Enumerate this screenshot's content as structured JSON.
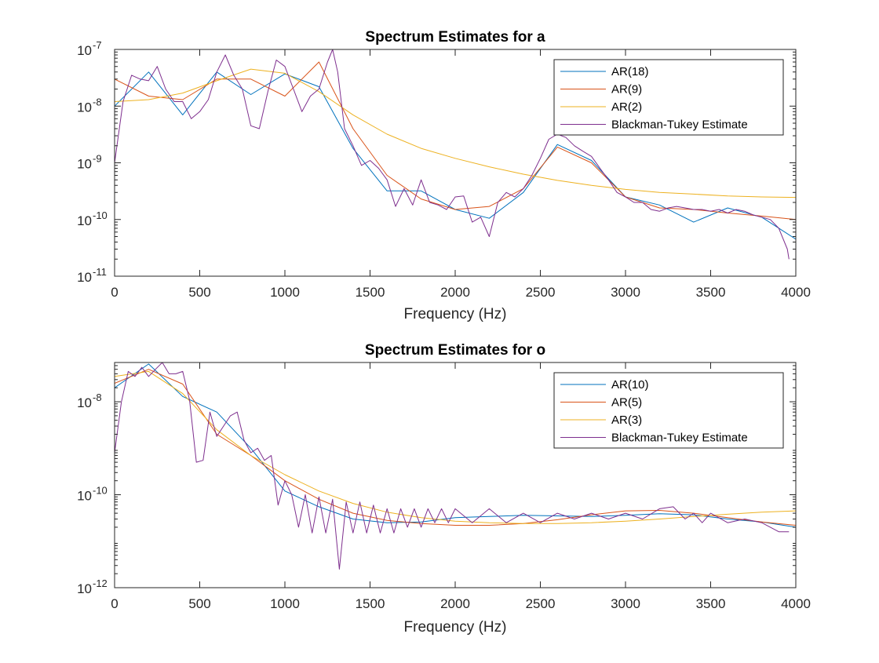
{
  "chart_data": [
    {
      "type": "line",
      "title": "Spectrum Estimates for a",
      "xlabel": "Frequency (Hz)",
      "ylabel": "",
      "xlim": [
        0,
        4000
      ],
      "ylim": [
        1e-11,
        1e-07
      ],
      "yscale": "log",
      "grid": false,
      "legend_position": "top-right",
      "x_ticks": [
        "0",
        "500",
        "1000",
        "1500",
        "2000",
        "2500",
        "3000",
        "3500",
        "4000"
      ],
      "y_ticks": [
        {
          "base": "10",
          "exp": "-11"
        },
        {
          "base": "10",
          "exp": "-10"
        },
        {
          "base": "10",
          "exp": "-9"
        },
        {
          "base": "10",
          "exp": "-8"
        },
        {
          "base": "10",
          "exp": "-7"
        }
      ],
      "series": [
        {
          "name": "AR(18)",
          "color": "#0072BD",
          "x": [
            0,
            200,
            400,
            600,
            800,
            1000,
            1200,
            1400,
            1600,
            1800,
            2000,
            2200,
            2400,
            2600,
            2800,
            3000,
            3200,
            3400,
            3600,
            3800,
            4000
          ],
          "y": [
            1e-08,
            4e-08,
            7e-09,
            4e-08,
            1.6e-08,
            3.7e-08,
            2.2e-08,
            1.8e-09,
            3.2e-10,
            3.2e-10,
            1.5e-10,
            1.05e-10,
            3e-10,
            2.1e-09,
            1.1e-09,
            2.5e-10,
            1.8e-10,
            9e-11,
            1.6e-10,
            1.1e-10,
            4.5e-11
          ]
        },
        {
          "name": "AR(9)",
          "color": "#D95319",
          "x": [
            0,
            200,
            400,
            600,
            800,
            1000,
            1200,
            1400,
            1600,
            1800,
            2000,
            2200,
            2400,
            2600,
            2800,
            3000,
            3200,
            3400,
            3600,
            3800,
            4000
          ],
          "y": [
            3e-08,
            1.5e-08,
            1.3e-08,
            3e-08,
            3e-08,
            1.5e-08,
            6e-08,
            4e-09,
            6e-10,
            2.3e-10,
            1.5e-10,
            1.7e-10,
            3.5e-10,
            1.9e-09,
            1e-09,
            2.5e-10,
            1.6e-10,
            1.5e-10,
            1.3e-10,
            1.15e-10,
            1e-10
          ]
        },
        {
          "name": "AR(2)",
          "color": "#EDB120",
          "x": [
            0,
            200,
            400,
            600,
            800,
            1000,
            1200,
            1400,
            1600,
            1800,
            2000,
            2200,
            2400,
            2600,
            2800,
            3000,
            3200,
            3400,
            3600,
            3800,
            4000
          ],
          "y": [
            1.2e-08,
            1.3e-08,
            1.7e-08,
            2.8e-08,
            4.5e-08,
            3.8e-08,
            1.8e-08,
            7e-09,
            3.2e-09,
            1.8e-09,
            1.2e-09,
            8.5e-10,
            6.3e-10,
            4.9e-10,
            4e-10,
            3.4e-10,
            3e-10,
            2.8e-10,
            2.6e-10,
            2.5e-10,
            2.45e-10
          ]
        },
        {
          "name": "Blackman-Tukey Estimate",
          "color": "#7E2F8E",
          "x": [
            0,
            50,
            100,
            150,
            200,
            250,
            300,
            350,
            400,
            450,
            500,
            550,
            600,
            650,
            700,
            750,
            800,
            850,
            900,
            950,
            1000,
            1050,
            1100,
            1150,
            1200,
            1250,
            1280,
            1310,
            1350,
            1400,
            1450,
            1500,
            1550,
            1600,
            1650,
            1700,
            1750,
            1800,
            1850,
            1900,
            1950,
            2000,
            2050,
            2100,
            2150,
            2200,
            2250,
            2300,
            2350,
            2400,
            2450,
            2500,
            2550,
            2600,
            2650,
            2700,
            2750,
            2800,
            2850,
            2900,
            2950,
            3000,
            3050,
            3100,
            3150,
            3200,
            3250,
            3300,
            3350,
            3400,
            3450,
            3500,
            3550,
            3600,
            3650,
            3700,
            3750,
            3800,
            3850,
            3900,
            3950,
            3960
          ],
          "y": [
            1e-09,
            1.2e-08,
            3.5e-08,
            3e-08,
            2.8e-08,
            5e-08,
            2e-08,
            1.2e-08,
            1.2e-08,
            6e-09,
            8e-09,
            1.3e-08,
            4e-08,
            8e-08,
            3.5e-08,
            2e-08,
            4.5e-09,
            4e-09,
            1.8e-08,
            6.5e-08,
            5e-08,
            2e-08,
            8e-09,
            1.5e-08,
            2e-08,
            6e-08,
            1e-07,
            4e-08,
            4e-09,
            2e-09,
            9e-10,
            1.1e-09,
            8e-10,
            5e-10,
            1.7e-10,
            3.5e-10,
            1.8e-10,
            5e-10,
            2e-10,
            1.8e-10,
            1.5e-10,
            2.5e-10,
            2.6e-10,
            9e-11,
            1.1e-10,
            5e-11,
            2e-10,
            3e-10,
            2.5e-10,
            3.5e-10,
            6e-10,
            1.2e-09,
            2.6e-09,
            3.2e-09,
            2.8e-09,
            2e-09,
            1.6e-09,
            1.3e-09,
            8e-10,
            5e-10,
            3e-10,
            2.5e-10,
            2e-10,
            2e-10,
            1.5e-10,
            1.4e-10,
            1.6e-10,
            1.7e-10,
            1.6e-10,
            1.5e-10,
            1.5e-10,
            1.4e-10,
            1.5e-10,
            1.3e-10,
            1.5e-10,
            1.4e-10,
            1.2e-10,
            1.1e-10,
            1e-10,
            7e-11,
            3e-11,
            2e-11
          ]
        }
      ]
    },
    {
      "type": "line",
      "title": "Spectrum Estimates for o",
      "xlabel": "Frequency (Hz)",
      "ylabel": "",
      "xlim": [
        0,
        4000
      ],
      "ylim": [
        1e-12,
        7e-08
      ],
      "yscale": "log",
      "grid": false,
      "legend_position": "top-right",
      "x_ticks": [
        "0",
        "500",
        "1000",
        "1500",
        "2000",
        "2500",
        "3000",
        "3500",
        "4000"
      ],
      "y_ticks": [
        {
          "base": "10",
          "exp": "-12"
        },
        {
          "base": "10",
          "exp": "-10"
        },
        {
          "base": "10",
          "exp": "-8"
        }
      ],
      "series": [
        {
          "name": "AR(10)",
          "color": "#0072BD",
          "x": [
            0,
            200,
            400,
            600,
            800,
            1000,
            1200,
            1400,
            1600,
            1800,
            2000,
            2200,
            2400,
            2600,
            2800,
            3000,
            3200,
            3400,
            3600,
            3800,
            4000
          ],
          "y": [
            2e-08,
            6.5e-08,
            1.3e-08,
            6e-09,
            1e-09,
            1.2e-10,
            5.5e-11,
            3e-11,
            2.5e-11,
            2.6e-11,
            3.2e-11,
            3.4e-11,
            3.6e-11,
            3.5e-11,
            3.4e-11,
            3.6e-11,
            3.9e-11,
            3.7e-11,
            3e-11,
            2.6e-11,
            2e-11
          ]
        },
        {
          "name": "AR(5)",
          "color": "#D95319",
          "x": [
            0,
            200,
            400,
            600,
            800,
            1000,
            1200,
            1400,
            1600,
            1800,
            2000,
            2200,
            2400,
            2600,
            2800,
            3000,
            3200,
            3400,
            3600,
            3800,
            4000
          ],
          "y": [
            2.5e-08,
            5e-08,
            2.4e-08,
            2e-09,
            7e-10,
            2e-10,
            8e-11,
            4e-11,
            2.8e-11,
            2.4e-11,
            2.2e-11,
            2.2e-11,
            2.4e-11,
            2.9e-11,
            3.7e-11,
            4.5e-11,
            4.6e-11,
            4e-11,
            3.2e-11,
            2.6e-11,
            2.2e-11
          ]
        },
        {
          "name": "AR(3)",
          "color": "#EDB120",
          "x": [
            0,
            200,
            400,
            600,
            800,
            1000,
            1200,
            1400,
            1600,
            1800,
            2000,
            2200,
            2400,
            2600,
            2800,
            3000,
            3200,
            3400,
            3600,
            3800,
            4000
          ],
          "y": [
            3.5e-08,
            4.5e-08,
            1.5e-08,
            2.5e-09,
            7e-10,
            2.7e-10,
            1.2e-10,
            6.5e-11,
            4.2e-11,
            3.2e-11,
            2.7e-11,
            2.5e-11,
            2.4e-11,
            2.4e-11,
            2.5e-11,
            2.7e-11,
            3e-11,
            3.4e-11,
            3.8e-11,
            4.2e-11,
            4.5e-11
          ]
        },
        {
          "name": "Blackman-Tukey Estimate",
          "color": "#7E2F8E",
          "x": [
            0,
            40,
            80,
            120,
            160,
            200,
            240,
            280,
            320,
            360,
            400,
            440,
            480,
            520,
            560,
            600,
            640,
            680,
            720,
            760,
            800,
            840,
            880,
            920,
            960,
            1000,
            1040,
            1080,
            1120,
            1160,
            1200,
            1240,
            1280,
            1320,
            1360,
            1400,
            1440,
            1480,
            1520,
            1560,
            1600,
            1640,
            1680,
            1720,
            1760,
            1800,
            1840,
            1880,
            1920,
            1960,
            2000,
            2100,
            2200,
            2300,
            2400,
            2500,
            2600,
            2700,
            2800,
            2900,
            3000,
            3100,
            3200,
            3280,
            3350,
            3400,
            3450,
            3500,
            3600,
            3700,
            3800,
            3900,
            3960
          ],
          "y": [
            8e-10,
            1e-08,
            4.5e-08,
            3.5e-08,
            5.5e-08,
            3.5e-08,
            5e-08,
            7e-08,
            4e-08,
            4e-08,
            4.5e-08,
            1.1e-08,
            5e-10,
            5.5e-10,
            6e-09,
            1.8e-09,
            3e-09,
            5e-09,
            6e-09,
            1.5e-09,
            8e-10,
            1e-09,
            5.5e-10,
            7e-10,
            6e-11,
            2e-10,
            1e-10,
            2e-11,
            1e-10,
            1.5e-11,
            9e-11,
            1.5e-11,
            8e-11,
            2.5e-12,
            7e-11,
            1.5e-11,
            7e-11,
            1.5e-11,
            6e-11,
            1.5e-11,
            5e-11,
            1.5e-11,
            5e-11,
            2e-11,
            5e-11,
            2e-11,
            5e-11,
            2.5e-11,
            5e-11,
            2.5e-11,
            5e-11,
            2.5e-11,
            5e-11,
            2.5e-11,
            4e-11,
            2.5e-11,
            4e-11,
            3e-11,
            4e-11,
            3e-11,
            4e-11,
            3e-11,
            5e-11,
            5.5e-11,
            3e-11,
            4e-11,
            2.5e-11,
            4e-11,
            2.5e-11,
            3e-11,
            2.5e-11,
            1.6e-11,
            1.6e-11
          ]
        }
      ]
    }
  ]
}
